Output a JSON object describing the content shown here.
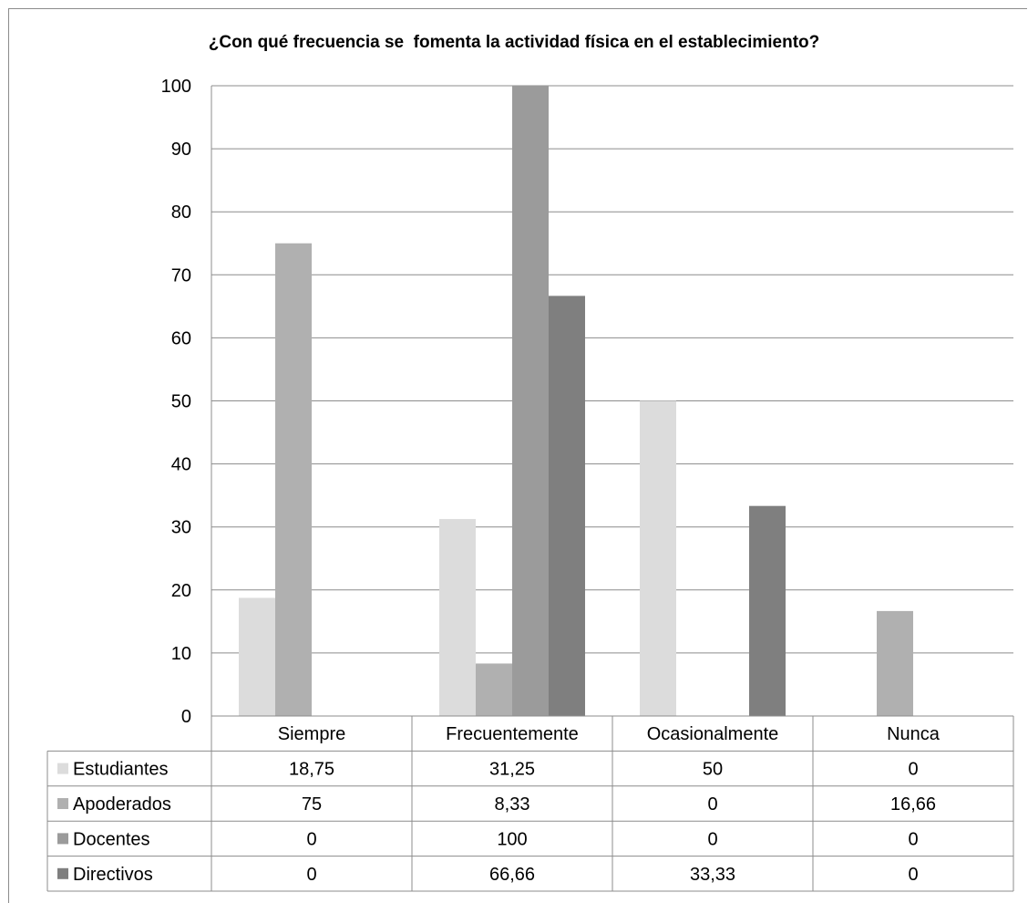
{
  "chart_data": {
    "type": "bar",
    "title": "¿Con qué frecuencia se  fomenta la actividad física en el establecimiento?",
    "xlabel": "",
    "ylabel": "",
    "ylim": [
      0,
      100
    ],
    "yticks": [
      "0",
      "10",
      "20",
      "30",
      "40",
      "50",
      "60",
      "70",
      "80",
      "90",
      "100"
    ],
    "grid": true,
    "legend": "data-table",
    "categories": [
      "Siempre",
      "Frecuentemente",
      "Ocasionalmente",
      "Nunca"
    ],
    "series": [
      {
        "name": "Estudiantes",
        "values": [
          18.75,
          31.25,
          50,
          0
        ],
        "labels": [
          "18,75",
          "31,25",
          "50",
          "0"
        ],
        "color": "#dcdcdc"
      },
      {
        "name": "Apoderados",
        "values": [
          75,
          8.33,
          0,
          16.66
        ],
        "labels": [
          "75",
          "8,33",
          "0",
          "16,66"
        ],
        "color": "#b0b0b0"
      },
      {
        "name": "Docentes",
        "values": [
          0,
          100,
          0,
          0
        ],
        "labels": [
          "0",
          "100",
          "0",
          "0"
        ],
        "color": "#9b9b9b"
      },
      {
        "name": "Directivos",
        "values": [
          0,
          66.66,
          33.33,
          0
        ],
        "labels": [
          "0",
          "66,66",
          "33,33",
          "0"
        ],
        "color": "#7f7f7f"
      }
    ]
  }
}
